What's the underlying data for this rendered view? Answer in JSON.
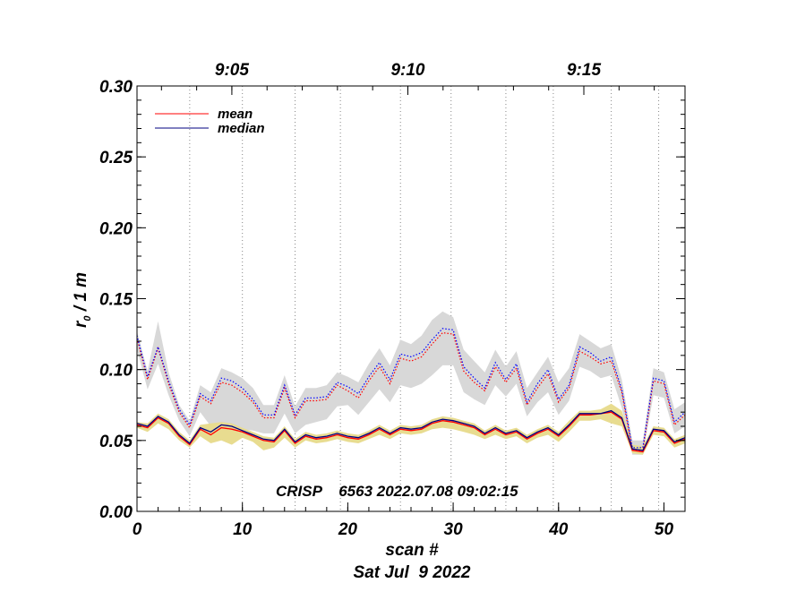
{
  "chart_data": {
    "type": "line",
    "xlabel": "scan #",
    "ylabel_main": "r",
    "ylabel_sub": "0",
    "ylabel_rest": " / 1 m",
    "date_label": "Sat Jul  9 2022",
    "annotation": "CRISP    6563 2022.07.08 09:02:15",
    "xlim": [
      0,
      52
    ],
    "ylim": [
      0.0,
      0.3
    ],
    "x_ticks": [
      0,
      10,
      20,
      30,
      40,
      50
    ],
    "x_tick_labels": [
      "0",
      "10",
      "20",
      "30",
      "40",
      "50"
    ],
    "y_ticks": [
      0.0,
      0.05,
      0.1,
      0.15,
      0.2,
      0.25,
      0.3
    ],
    "y_tick_labels": [
      "0.00",
      "0.05",
      "0.10",
      "0.15",
      "0.20",
      "0.25",
      "0.30"
    ],
    "time_ticks": [
      {
        "scan": 9,
        "label": "9:05"
      },
      {
        "scan": 25.7,
        "label": "9:10"
      },
      {
        "scan": 42.4,
        "label": "9:15"
      }
    ],
    "time_gridlines": [
      5,
      10,
      15,
      19.3,
      25,
      29.8,
      35,
      39.5,
      45,
      49.5
    ],
    "legend": [
      {
        "label": "mean",
        "color": "#ff0000"
      },
      {
        "label": "median",
        "color": "#000080"
      }
    ],
    "colors": {
      "mean": "#ff0000",
      "median": "#000080",
      "median_dotted": "#0000ff",
      "band_low": "#e8dc90",
      "band_high": "#d8d8d8"
    },
    "x": [
      0,
      1,
      2,
      3,
      4,
      5,
      6,
      7,
      8,
      9,
      10,
      11,
      12,
      13,
      14,
      15,
      16,
      17,
      18,
      19,
      20,
      21,
      22,
      23,
      24,
      25,
      26,
      27,
      28,
      29,
      30,
      31,
      32,
      33,
      34,
      35,
      36,
      37,
      38,
      39,
      40,
      41,
      42,
      43,
      44,
      45,
      46,
      47,
      48,
      49,
      50,
      51,
      52
    ],
    "series": [
      {
        "name": "median_high",
        "values": [
          0.124,
          0.095,
          0.116,
          0.092,
          0.072,
          0.061,
          0.083,
          0.078,
          0.094,
          0.092,
          0.087,
          0.079,
          0.068,
          0.068,
          0.089,
          0.068,
          0.08,
          0.08,
          0.081,
          0.091,
          0.088,
          0.083,
          0.095,
          0.105,
          0.093,
          0.111,
          0.109,
          0.112,
          0.121,
          0.129,
          0.128,
          0.102,
          0.094,
          0.087,
          0.105,
          0.093,
          0.104,
          0.077,
          0.09,
          0.1,
          0.079,
          0.089,
          0.116,
          0.112,
          0.106,
          0.109,
          0.086,
          0.045,
          0.045,
          0.094,
          0.092,
          0.063,
          0.07
        ]
      },
      {
        "name": "mean_high",
        "values": [
          0.122,
          0.093,
          0.115,
          0.09,
          0.07,
          0.059,
          0.081,
          0.076,
          0.091,
          0.089,
          0.084,
          0.077,
          0.066,
          0.066,
          0.087,
          0.066,
          0.078,
          0.078,
          0.079,
          0.089,
          0.085,
          0.08,
          0.092,
          0.102,
          0.09,
          0.108,
          0.106,
          0.109,
          0.118,
          0.126,
          0.125,
          0.099,
          0.091,
          0.085,
          0.102,
          0.091,
          0.101,
          0.075,
          0.087,
          0.097,
          0.077,
          0.087,
          0.113,
          0.109,
          0.104,
          0.106,
          0.084,
          0.043,
          0.043,
          0.092,
          0.09,
          0.061,
          0.068
        ]
      },
      {
        "name": "high_band_upper",
        "values": [
          0.127,
          0.099,
          0.134,
          0.098,
          0.075,
          0.064,
          0.089,
          0.084,
          0.101,
          0.098,
          0.094,
          0.087,
          0.075,
          0.075,
          0.096,
          0.074,
          0.087,
          0.087,
          0.089,
          0.098,
          0.095,
          0.091,
          0.104,
          0.115,
          0.103,
          0.121,
          0.118,
          0.124,
          0.135,
          0.141,
          0.137,
          0.114,
          0.106,
          0.098,
          0.114,
          0.102,
          0.113,
          0.087,
          0.098,
          0.109,
          0.091,
          0.101,
          0.125,
          0.12,
          0.115,
          0.118,
          0.093,
          0.05,
          0.05,
          0.101,
          0.098,
          0.072,
          0.077
        ]
      },
      {
        "name": "high_band_lower",
        "values": [
          0.114,
          0.086,
          0.104,
          0.082,
          0.064,
          0.053,
          0.07,
          0.06,
          0.058,
          0.055,
          0.058,
          0.057,
          0.055,
          0.055,
          0.069,
          0.055,
          0.061,
          0.063,
          0.065,
          0.074,
          0.075,
          0.068,
          0.077,
          0.086,
          0.077,
          0.089,
          0.087,
          0.09,
          0.096,
          0.103,
          0.103,
          0.084,
          0.079,
          0.075,
          0.089,
          0.081,
          0.09,
          0.067,
          0.077,
          0.084,
          0.068,
          0.078,
          0.102,
          0.099,
          0.094,
          0.096,
          0.073,
          0.04,
          0.04,
          0.082,
          0.08,
          0.055,
          0.06
        ]
      },
      {
        "name": "mean_low",
        "values": [
          0.061,
          0.059,
          0.066,
          0.062,
          0.053,
          0.047,
          0.058,
          0.054,
          0.059,
          0.058,
          0.056,
          0.053,
          0.05,
          0.049,
          0.057,
          0.048,
          0.053,
          0.051,
          0.052,
          0.054,
          0.052,
          0.051,
          0.054,
          0.058,
          0.054,
          0.058,
          0.057,
          0.058,
          0.062,
          0.064,
          0.063,
          0.061,
          0.059,
          0.054,
          0.058,
          0.054,
          0.056,
          0.051,
          0.055,
          0.058,
          0.053,
          0.06,
          0.068,
          0.068,
          0.069,
          0.07,
          0.065,
          0.043,
          0.042,
          0.057,
          0.056,
          0.048,
          0.051
        ]
      },
      {
        "name": "median_low",
        "values": [
          0.062,
          0.06,
          0.067,
          0.063,
          0.054,
          0.048,
          0.059,
          0.056,
          0.061,
          0.06,
          0.057,
          0.054,
          0.051,
          0.05,
          0.058,
          0.049,
          0.054,
          0.052,
          0.053,
          0.055,
          0.053,
          0.052,
          0.055,
          0.059,
          0.055,
          0.059,
          0.058,
          0.059,
          0.063,
          0.065,
          0.064,
          0.062,
          0.06,
          0.055,
          0.059,
          0.055,
          0.057,
          0.052,
          0.056,
          0.059,
          0.054,
          0.061,
          0.069,
          0.069,
          0.069,
          0.071,
          0.066,
          0.044,
          0.043,
          0.058,
          0.057,
          0.049,
          0.052
        ]
      },
      {
        "name": "low_band_upper",
        "values": [
          0.063,
          0.062,
          0.069,
          0.065,
          0.056,
          0.05,
          0.061,
          0.062,
          0.063,
          0.062,
          0.059,
          0.056,
          0.053,
          0.052,
          0.06,
          0.051,
          0.056,
          0.054,
          0.055,
          0.057,
          0.055,
          0.054,
          0.057,
          0.061,
          0.057,
          0.061,
          0.06,
          0.061,
          0.065,
          0.067,
          0.066,
          0.064,
          0.062,
          0.057,
          0.061,
          0.057,
          0.059,
          0.054,
          0.058,
          0.061,
          0.056,
          0.064,
          0.071,
          0.071,
          0.072,
          0.076,
          0.071,
          0.047,
          0.046,
          0.06,
          0.059,
          0.051,
          0.054
        ]
      },
      {
        "name": "low_band_lower",
        "values": [
          0.059,
          0.056,
          0.062,
          0.058,
          0.05,
          0.045,
          0.053,
          0.048,
          0.05,
          0.047,
          0.052,
          0.049,
          0.043,
          0.045,
          0.052,
          0.045,
          0.05,
          0.048,
          0.049,
          0.051,
          0.049,
          0.048,
          0.051,
          0.054,
          0.051,
          0.055,
          0.054,
          0.055,
          0.058,
          0.059,
          0.058,
          0.056,
          0.054,
          0.051,
          0.054,
          0.051,
          0.053,
          0.048,
          0.052,
          0.054,
          0.049,
          0.056,
          0.064,
          0.064,
          0.065,
          0.062,
          0.06,
          0.041,
          0.04,
          0.054,
          0.053,
          0.045,
          0.048
        ]
      }
    ]
  }
}
